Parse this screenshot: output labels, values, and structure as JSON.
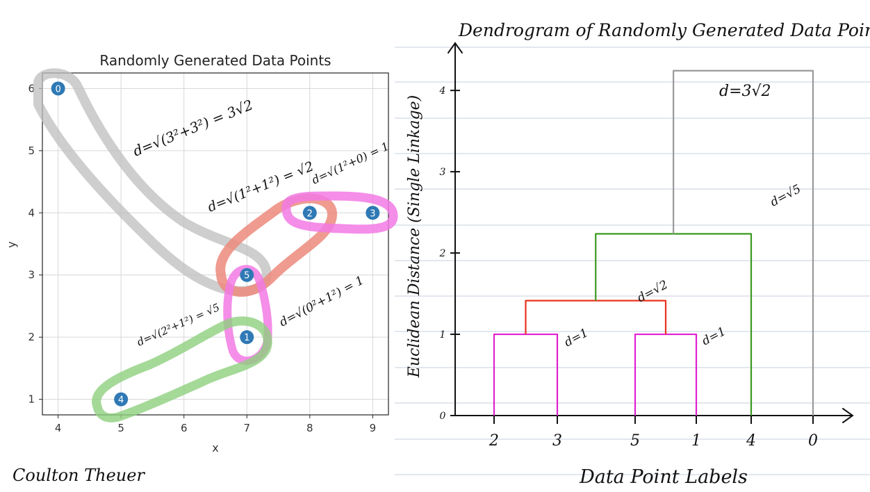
{
  "author": "Coulton Theuer",
  "chart_data": [
    {
      "type": "scatter",
      "title": "Randomly Generated Data Points",
      "xlabel": "x",
      "ylabel": "y",
      "xlim": [
        3.75,
        9.25
      ],
      "ylim": [
        0.75,
        6.25
      ],
      "xticks": [
        4,
        5,
        6,
        7,
        8,
        9
      ],
      "yticks": [
        1,
        2,
        3,
        4,
        5,
        6
      ],
      "grid": true,
      "points": [
        {
          "label": "0",
          "x": 4,
          "y": 6
        },
        {
          "label": "1",
          "x": 7,
          "y": 2
        },
        {
          "label": "2",
          "x": 8,
          "y": 4
        },
        {
          "label": "3",
          "x": 9,
          "y": 4
        },
        {
          "label": "4",
          "x": 5,
          "y": 1
        },
        {
          "label": "5",
          "x": 7,
          "y": 3
        }
      ],
      "annotations": [
        {
          "text": "d=√(3²+3²) = 3√2",
          "color": "#888888"
        },
        {
          "text": "d=√(1²+1²) = √2",
          "color": "#e8321e"
        },
        {
          "text": "d=√(1²+0) = 1",
          "color": "#e020d0"
        },
        {
          "text": "d=√(0²+1²) = 1",
          "color": "#e020d0"
        },
        {
          "text": "d=√(2²+1²) = √5",
          "color": "#3a9a1e"
        }
      ],
      "point_color": "#2f79b5"
    },
    {
      "type": "dendrogram",
      "title": "Dendrogram of Randomly Generated Data Points",
      "xlabel": "Data Point Labels",
      "ylabel": "Euclidean Distance (Single Linkage)",
      "leaf_labels": [
        "2",
        "3",
        "5",
        "1",
        "4",
        "0"
      ],
      "yticks": [
        0,
        1,
        2,
        3,
        4
      ],
      "ylim": [
        0,
        4.6
      ],
      "merges": [
        {
          "left": "2",
          "right": "3",
          "height": 1,
          "label": "d=1",
          "color": "#e020d0"
        },
        {
          "left": "5",
          "right": "1",
          "height": 1,
          "label": "d=1",
          "color": "#e020d0"
        },
        {
          "left": "2,3",
          "right": "5,1",
          "height": 1.414,
          "label": "d=√2",
          "color": "#e8321e"
        },
        {
          "left": "2,3,5,1",
          "right": "4",
          "height": 2.236,
          "label": "d=√5",
          "color": "#3a9a1e"
        },
        {
          "left": "2,3,5,1,4",
          "right": "0",
          "height": 4.243,
          "label": "d=3√2",
          "color": "#999999"
        }
      ]
    }
  ]
}
